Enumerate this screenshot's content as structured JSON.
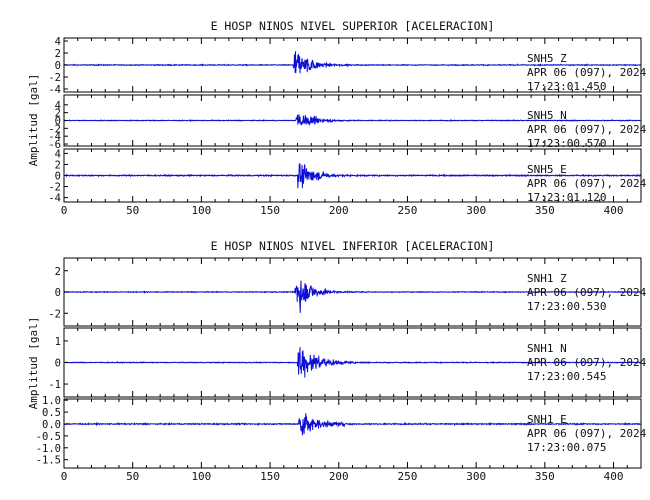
{
  "chart_data": [
    {
      "type": "line",
      "title": "E HOSP NINOS NIVEL SUPERIOR [ACELERACION]",
      "ylabel": "Amplitud [gal]",
      "xlabel": "",
      "xlim": [
        0,
        420
      ],
      "xticks": [
        "0",
        "50",
        "100",
        "150",
        "200",
        "250",
        "300",
        "350",
        "400"
      ],
      "grid": false,
      "panels": [
        {
          "station": "SNH5",
          "component": "Z",
          "date": "APR 06 (097), 2024",
          "time": "17:23:01.450",
          "ylim": [
            -4.5,
            4.5
          ],
          "yticks": [
            "4",
            "2",
            "0",
            "-2",
            "-4"
          ],
          "event_onset_s": 167,
          "peak_amplitude": 4.3,
          "noise_level": 0.12,
          "decay_s": 10
        },
        {
          "station": "SNH5",
          "component": "N",
          "date": "APR 06 (097), 2024",
          "time": "17:23:00.570",
          "ylim": [
            -6.5,
            6.5
          ],
          "yticks": [
            "4",
            "2",
            "0",
            "-2",
            "-4",
            "-6"
          ],
          "event_onset_s": 169,
          "peak_amplitude": 3.5,
          "noise_level": 0.15,
          "decay_s": 12
        },
        {
          "station": "SNH5",
          "component": "E",
          "date": "APR 06 (097), 2024",
          "time": "17:23:01.120",
          "ylim": [
            -4.8,
            4.8
          ],
          "yticks": [
            "4",
            "2",
            "0",
            "-2",
            "-4"
          ],
          "event_onset_s": 170,
          "peak_amplitude": 3.9,
          "noise_level": 0.18,
          "decay_s": 11
        }
      ],
      "series_color": "#0d0dd6"
    },
    {
      "type": "line",
      "title": "E HOSP NINOS NIVEL INFERIOR [ACELERACION]",
      "ylabel": "Amplitud [gal]",
      "xlabel": "",
      "xlim": [
        0,
        420
      ],
      "xticks": [
        "0",
        "50",
        "100",
        "150",
        "200",
        "250",
        "300",
        "350",
        "400"
      ],
      "grid": false,
      "panels": [
        {
          "station": "SNH1",
          "component": "Z",
          "date": "APR 06 (097), 2024",
          "time": "17:23:00.530",
          "ylim": [
            -3.2,
            3.2
          ],
          "yticks": [
            "2",
            "0",
            "-2"
          ],
          "event_onset_s": 168,
          "peak_amplitude": 2.9,
          "noise_level": 0.06,
          "decay_s": 10
        },
        {
          "station": "SNH1",
          "component": "N",
          "date": "APR 06 (097), 2024",
          "time": "17:23:00.545",
          "ylim": [
            -1.6,
            1.6
          ],
          "yticks": [
            "1",
            "0",
            "-1"
          ],
          "event_onset_s": 170,
          "peak_amplitude": 1.3,
          "noise_level": 0.03,
          "decay_s": 13
        },
        {
          "station": "SNH1",
          "component": "E",
          "date": "APR 06 (097), 2024",
          "time": "17:23:00.075",
          "ylim": [
            -1.85,
            1.05
          ],
          "yticks": [
            "1.0",
            "0.5",
            "0.0",
            "-0.5",
            "-1.0",
            "-1.5"
          ],
          "event_onset_s": 171,
          "peak_amplitude": 1.0,
          "noise_level": 0.04,
          "decay_s": 12
        }
      ],
      "series_color": "#0d0dd6"
    }
  ]
}
